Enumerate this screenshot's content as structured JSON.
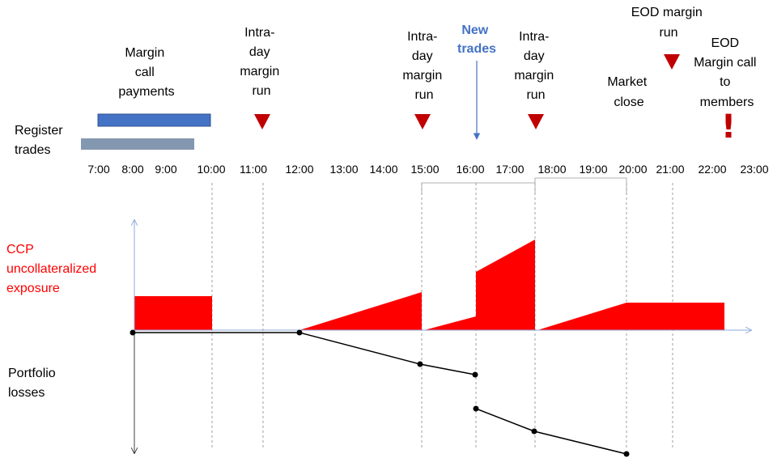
{
  "colors": {
    "red": "#ff0000",
    "triangle": "#c00000",
    "blue_bar": "#4472c4",
    "gray_bar": "#8497b0",
    "new_trades": "#4472c4",
    "line": "#000000"
  },
  "labels": {
    "register_trades": [
      "Register",
      "trades"
    ],
    "margin_call_payments": [
      "Margin",
      "call",
      "payments"
    ],
    "intraday_1100": [
      "Intra-",
      "day",
      "margin",
      "run"
    ],
    "intraday_1500": [
      "Intra-",
      "day",
      "margin",
      "run"
    ],
    "new_trades": [
      "New",
      "trades"
    ],
    "intraday_1730": [
      "Intra-",
      "day",
      "margin",
      "run"
    ],
    "market_close": [
      "Market",
      "close"
    ],
    "eod_margin_run": [
      "EOD margin",
      "run"
    ],
    "eod_margin_call": [
      "EOD",
      "Margin call",
      "to",
      "members"
    ],
    "ccp_exposure": [
      "CCP",
      "uncollateralized",
      "exposure"
    ],
    "portfolio_losses": [
      "Portfolio",
      "losses"
    ],
    "exclamation": "!"
  },
  "timeline": {
    "ticks": [
      "7:00",
      "8:00",
      "9:00",
      "10:00",
      "11:00",
      "12:00",
      "13:00",
      "14:00",
      "15:00",
      "16:00",
      "17:00",
      "18:00",
      "19:00",
      "20:00",
      "21:00",
      "22:00",
      "23:00"
    ]
  }
}
